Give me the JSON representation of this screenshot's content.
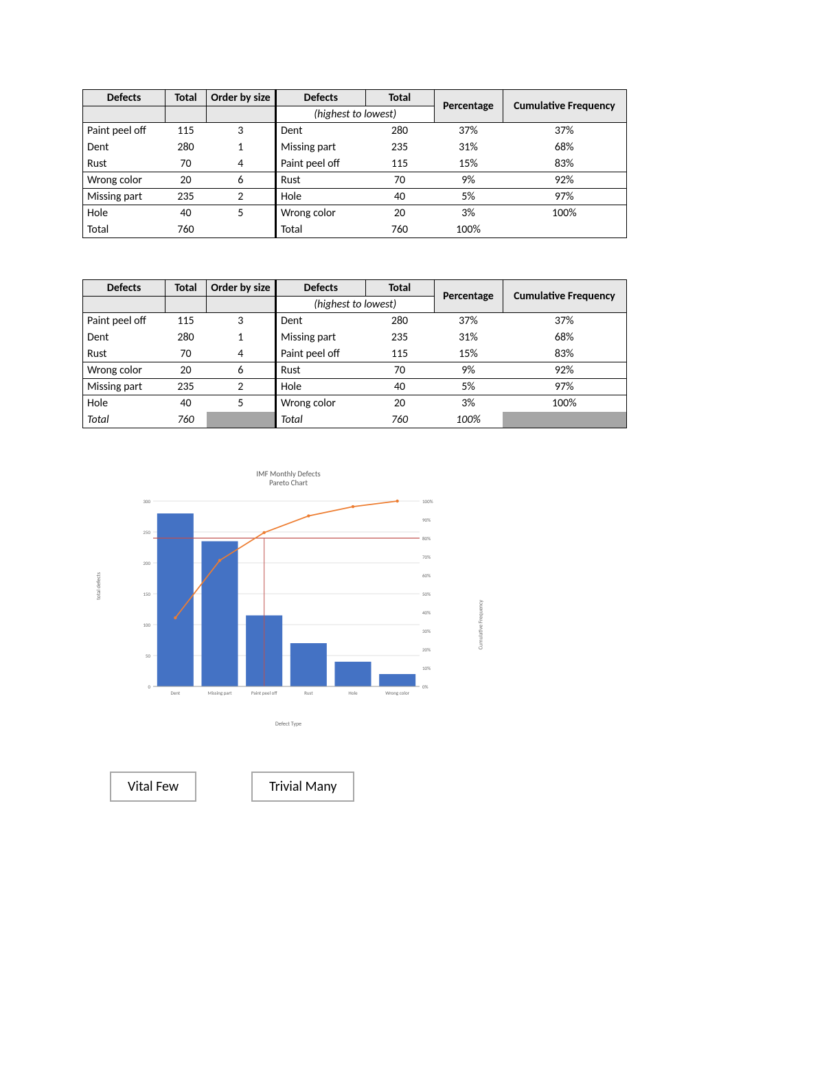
{
  "tables": {
    "header_left": [
      "Defects",
      "Total",
      "Order by size"
    ],
    "header_right_top": [
      "Defects",
      "Total",
      "Percentage",
      "Cumulative Frequency"
    ],
    "header_right_sub": "(highest to lowest)",
    "left_rows": [
      {
        "defect": "Paint peel off",
        "total": 115,
        "order": 3
      },
      {
        "defect": "Dent",
        "total": 280,
        "order": 1
      },
      {
        "defect": "Rust",
        "total": 70,
        "order": 4
      },
      {
        "defect": "Wrong color",
        "total": 20,
        "order": 6
      },
      {
        "defect": "Missing part",
        "total": 235,
        "order": 2
      },
      {
        "defect": "Hole",
        "total": 40,
        "order": 5
      }
    ],
    "left_total_label": "Total",
    "left_total_value": 760,
    "right_rows": [
      {
        "defect": "Dent",
        "total": 280,
        "pct": "37%",
        "cum": "37%"
      },
      {
        "defect": "Missing part",
        "total": 235,
        "pct": "31%",
        "cum": "68%"
      },
      {
        "defect": "Paint peel off",
        "total": 115,
        "pct": "15%",
        "cum": "83%"
      },
      {
        "defect": "Rust",
        "total": 70,
        "pct": "9%",
        "cum": "92%"
      },
      {
        "defect": "Hole",
        "total": 40,
        "pct": "5%",
        "cum": "97%"
      },
      {
        "defect": "Wrong color",
        "total": 20,
        "pct": "3%",
        "cum": "100%"
      }
    ],
    "right_total_label": "Total",
    "right_total_value": 760,
    "right_total_pct": "100%"
  },
  "chart": {
    "type": "pareto",
    "title_line1": "IMF Monthly Defects",
    "title_line2": "Pareto Chart",
    "categories": [
      "Dent",
      "Missing part",
      "Paint peel off",
      "Rust",
      "Hole",
      "Wrong color"
    ],
    "bar_values": [
      280,
      235,
      115,
      70,
      40,
      20
    ],
    "cum_pct": [
      37,
      68,
      83,
      92,
      97,
      100
    ],
    "y_left": {
      "min": 0,
      "max": 300,
      "step": 50,
      "label": "total defects"
    },
    "y_right": {
      "min": 0,
      "max": 100,
      "step": 10,
      "label": "Cumulative Frequency"
    },
    "x_label": "Defect Type",
    "bar_color": "#4472c4",
    "line_color": "#ed7d31",
    "ref_line_pct": 80,
    "ref_line_color": "#c0504d",
    "grid_color": "#d9d9d9",
    "background": "#ffffff",
    "title_fontsize": 11,
    "axis_fontsize": 8
  },
  "labels": {
    "vital": "Vital Few",
    "trivial": "Trivial Many"
  }
}
